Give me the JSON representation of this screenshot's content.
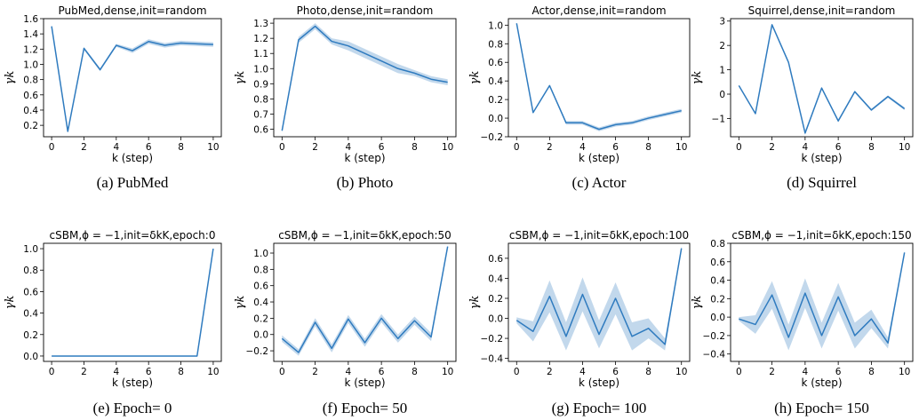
{
  "chart_data": [
    {
      "type": "line",
      "title": "PubMed,dense,init=random",
      "xlabel": "k (step)",
      "ylabel": "γk",
      "caption": "(a) PubMed",
      "xlim": [
        -0.5,
        10.5
      ],
      "ylim": [
        0.05,
        1.6
      ],
      "xticks": [
        0,
        2,
        4,
        6,
        8,
        10
      ],
      "yticks": [
        0.2,
        0.4,
        0.6,
        0.8,
        1.0,
        1.2,
        1.4,
        1.6
      ],
      "ytick_labels": [
        "0.2",
        "0.4",
        "0.6",
        "0.8",
        "1.0",
        "1.2",
        "1.4",
        "1.6"
      ],
      "x": [
        0,
        1,
        2,
        3,
        4,
        5,
        6,
        7,
        8,
        9,
        10
      ],
      "y": [
        1.5,
        0.12,
        1.21,
        0.93,
        1.25,
        1.18,
        1.3,
        1.25,
        1.28,
        1.27,
        1.26
      ],
      "band": [
        0.01,
        0.01,
        0.02,
        0.02,
        0.02,
        0.03,
        0.03,
        0.03,
        0.03,
        0.03,
        0.03
      ]
    },
    {
      "type": "line",
      "title": "Photo,dense,init=random",
      "xlabel": "k (step)",
      "ylabel": "γk",
      "caption": "(b) Photo",
      "xlim": [
        -0.5,
        10.5
      ],
      "ylim": [
        0.55,
        1.33
      ],
      "xticks": [
        0,
        2,
        4,
        6,
        8,
        10
      ],
      "yticks": [
        0.6,
        0.7,
        0.8,
        0.9,
        1.0,
        1.1,
        1.2,
        1.3
      ],
      "ytick_labels": [
        "0.6",
        "0.7",
        "0.8",
        "0.9",
        "1.0",
        "1.1",
        "1.2",
        "1.3"
      ],
      "x": [
        0,
        1,
        2,
        3,
        4,
        5,
        6,
        7,
        8,
        9,
        10
      ],
      "y": [
        0.59,
        1.19,
        1.28,
        1.18,
        1.15,
        1.1,
        1.05,
        1.0,
        0.97,
        0.93,
        0.91
      ],
      "band": [
        0.01,
        0.02,
        0.02,
        0.02,
        0.03,
        0.03,
        0.03,
        0.03,
        0.02,
        0.02,
        0.02
      ]
    },
    {
      "type": "line",
      "title": "Actor,dense,init=random",
      "xlabel": "k (step)",
      "ylabel": "γk",
      "caption": "(c) Actor",
      "xlim": [
        -0.5,
        10.5
      ],
      "ylim": [
        -0.2,
        1.07
      ],
      "xticks": [
        0,
        2,
        4,
        6,
        8,
        10
      ],
      "yticks": [
        -0.2,
        0.0,
        0.2,
        0.4,
        0.6,
        0.8,
        1.0
      ],
      "ytick_labels": [
        "−0.2",
        "0.0",
        "0.2",
        "0.4",
        "0.6",
        "0.8",
        "1.0"
      ],
      "x": [
        0,
        1,
        2,
        3,
        4,
        5,
        6,
        7,
        8,
        9,
        10
      ],
      "y": [
        1.02,
        0.06,
        0.35,
        -0.05,
        -0.05,
        -0.12,
        -0.07,
        -0.05,
        0.0,
        0.04,
        0.08
      ],
      "band": [
        0.01,
        0.01,
        0.01,
        0.02,
        0.02,
        0.02,
        0.02,
        0.02,
        0.02,
        0.02,
        0.02
      ]
    },
    {
      "type": "line",
      "title": "Squirrel,dense,init=random",
      "xlabel": "k (step)",
      "ylabel": "γk",
      "caption": "(d) Squirrel",
      "xlim": [
        -0.5,
        10.5
      ],
      "ylim": [
        -1.75,
        3.1
      ],
      "xticks": [
        0,
        2,
        4,
        6,
        8,
        10
      ],
      "yticks": [
        -1,
        0,
        1,
        2,
        3
      ],
      "ytick_labels": [
        "−1",
        "0",
        "1",
        "2",
        "3"
      ],
      "x": [
        0,
        1,
        2,
        3,
        4,
        5,
        6,
        7,
        8,
        9,
        10
      ],
      "y": [
        0.35,
        -0.8,
        2.85,
        1.3,
        -1.6,
        0.25,
        -1.1,
        0.1,
        -0.65,
        -0.1,
        -0.6
      ],
      "band": [
        0.02,
        0.03,
        0.05,
        0.05,
        0.08,
        0.05,
        0.06,
        0.05,
        0.05,
        0.05,
        0.06
      ]
    },
    {
      "type": "line",
      "title": "cSBM,ϕ = −1,init=δkK,epoch:0",
      "xlabel": "k (step)",
      "ylabel": "γk",
      "caption": "(e) Epoch= 0",
      "xlim": [
        -0.5,
        10.5
      ],
      "ylim": [
        -0.05,
        1.05
      ],
      "xticks": [
        0,
        2,
        4,
        6,
        8,
        10
      ],
      "yticks": [
        0.0,
        0.2,
        0.4,
        0.6,
        0.8,
        1.0
      ],
      "ytick_labels": [
        "0.0",
        "0.2",
        "0.4",
        "0.6",
        "0.8",
        "1.0"
      ],
      "x": [
        0,
        1,
        2,
        3,
        4,
        5,
        6,
        7,
        8,
        9,
        10
      ],
      "y": [
        0,
        0,
        0,
        0,
        0,
        0,
        0,
        0,
        0,
        0,
        1.0
      ],
      "band": [
        0,
        0,
        0,
        0,
        0,
        0,
        0,
        0,
        0,
        0,
        0
      ]
    },
    {
      "type": "line",
      "title": "cSBM,ϕ = −1,init=δkK,epoch:50",
      "xlabel": "k (step)",
      "ylabel": "γk",
      "caption": "(f) Epoch= 50",
      "xlim": [
        -0.5,
        10.5
      ],
      "ylim": [
        -0.33,
        1.12
      ],
      "xticks": [
        0,
        2,
        4,
        6,
        8,
        10
      ],
      "yticks": [
        -0.2,
        0.0,
        0.2,
        0.4,
        0.6,
        0.8,
        1.0
      ],
      "ytick_labels": [
        "−0.2",
        "0.0",
        "0.2",
        "0.4",
        "0.6",
        "0.8",
        "1.0"
      ],
      "x": [
        0,
        1,
        2,
        3,
        4,
        5,
        6,
        7,
        8,
        9,
        10
      ],
      "y": [
        -0.05,
        -0.22,
        0.15,
        -0.17,
        0.19,
        -0.1,
        0.2,
        -0.05,
        0.17,
        -0.03,
        1.08
      ],
      "band": [
        0.04,
        0.04,
        0.05,
        0.05,
        0.05,
        0.05,
        0.05,
        0.05,
        0.05,
        0.05,
        0.02
      ]
    },
    {
      "type": "line",
      "title": "cSBM,ϕ = −1,init=δkK,epoch:100",
      "xlabel": "k (step)",
      "ylabel": "γk",
      "caption": "(g) Epoch= 100",
      "xlim": [
        -0.5,
        10.5
      ],
      "ylim": [
        -0.43,
        0.75
      ],
      "xticks": [
        0,
        2,
        4,
        6,
        8,
        10
      ],
      "yticks": [
        -0.4,
        -0.2,
        0.0,
        0.2,
        0.4,
        0.6
      ],
      "ytick_labels": [
        "−0.4",
        "−0.2",
        "0.0",
        "0.2",
        "0.4",
        "0.6"
      ],
      "x": [
        0,
        1,
        2,
        3,
        4,
        5,
        6,
        7,
        8,
        9,
        10
      ],
      "y": [
        -0.02,
        -0.13,
        0.22,
        -0.18,
        0.24,
        -0.16,
        0.2,
        -0.18,
        -0.1,
        -0.26,
        0.7
      ],
      "band": [
        0.03,
        0.1,
        0.16,
        0.14,
        0.17,
        0.14,
        0.16,
        0.14,
        0.1,
        0.06,
        0.02
      ]
    },
    {
      "type": "line",
      "title": "cSBM,ϕ = −1,init=δkK,epoch:150",
      "xlabel": "k (step)",
      "ylabel": "γk",
      "caption": "(h) Epoch= 150",
      "xlim": [
        -0.5,
        10.5
      ],
      "ylim": [
        -0.48,
        0.8
      ],
      "xticks": [
        0,
        2,
        4,
        6,
        8,
        10
      ],
      "yticks": [
        -0.4,
        -0.2,
        0.0,
        0.2,
        0.4,
        0.6,
        0.8
      ],
      "ytick_labels": [
        "−0.4",
        "−0.2",
        "0.0",
        "0.2",
        "0.4",
        "0.6",
        "0.8"
      ],
      "x": [
        0,
        1,
        2,
        3,
        4,
        5,
        6,
        7,
        8,
        9,
        10
      ],
      "y": [
        -0.02,
        -0.08,
        0.24,
        -0.22,
        0.26,
        -0.2,
        0.22,
        -0.2,
        -0.02,
        -0.28,
        0.7
      ],
      "band": [
        0.02,
        0.1,
        0.15,
        0.14,
        0.16,
        0.14,
        0.15,
        0.14,
        0.1,
        0.06,
        0.02
      ]
    }
  ],
  "colors": {
    "line": "#2f7bbf",
    "band": "#aecbe6"
  }
}
